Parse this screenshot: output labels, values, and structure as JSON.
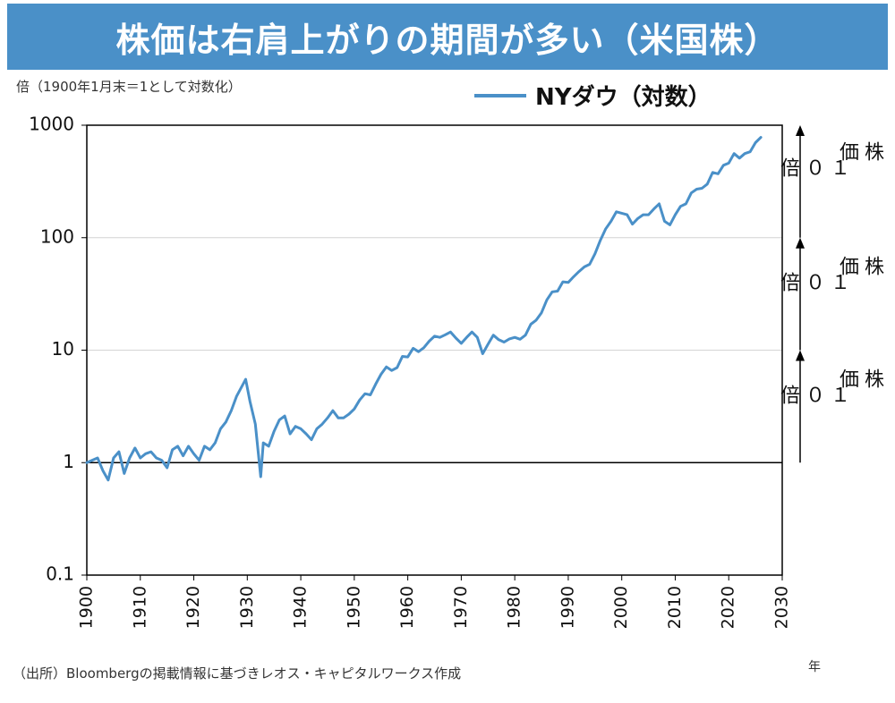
{
  "header": {
    "title": "株価は右肩上がりの期間が多い（米国株）"
  },
  "chart_data": {
    "type": "line",
    "scale_y": "log",
    "ylabel": "倍（1900年1月末＝1として対数化）",
    "xlabel": "年",
    "xlim": [
      1900,
      2030
    ],
    "ylim": [
      0.1,
      1000
    ],
    "x_ticks": [
      "1900",
      "1910",
      "1920",
      "1930",
      "1940",
      "1950",
      "1960",
      "1970",
      "1980",
      "1990",
      "2000",
      "2010",
      "2020",
      "2030"
    ],
    "y_ticks": [
      "0.1",
      "1",
      "10",
      "100",
      "1000"
    ],
    "grid": "horizontal",
    "legend": "top-right",
    "series": [
      {
        "name": "NYダウ（対数）",
        "color": "#4a90c8",
        "x": [
          1900,
          1901,
          1902,
          1903,
          1904,
          1905,
          1906,
          1907,
          1908,
          1909,
          1910,
          1911,
          1912,
          1913,
          1914,
          1915,
          1916,
          1917,
          1918,
          1919,
          1920,
          1921,
          1922,
          1923,
          1924,
          1925,
          1926,
          1927,
          1928,
          1929.7,
          1930.5,
          1931.5,
          1932.5,
          1933,
          1934,
          1935,
          1936,
          1937,
          1938,
          1939,
          1940,
          1941,
          1942,
          1943,
          1944,
          1945,
          1946,
          1947,
          1948,
          1949,
          1950,
          1951,
          1952,
          1953,
          1954,
          1955,
          1956,
          1957,
          1958,
          1959,
          1960,
          1961,
          1962,
          1963,
          1964,
          1965,
          1966,
          1967,
          1968,
          1969,
          1970,
          1971,
          1972,
          1973,
          1974,
          1975,
          1976,
          1977,
          1978,
          1979,
          1980,
          1981,
          1982,
          1983,
          1984,
          1985,
          1986,
          1987,
          1988,
          1989,
          1990,
          1991,
          1992,
          1993,
          1994,
          1995,
          1996,
          1997,
          1998,
          1999,
          2000,
          2001,
          2002,
          2003,
          2004,
          2005,
          2006,
          2007,
          2008,
          2009,
          2010,
          2011,
          2012,
          2013,
          2014,
          2015,
          2016,
          2017,
          2018,
          2019,
          2020,
          2021,
          2022,
          2023,
          2024,
          2025,
          2026
        ],
        "values": [
          1,
          1.05,
          1.1,
          0.85,
          0.7,
          1.1,
          1.25,
          0.8,
          1.1,
          1.35,
          1.1,
          1.2,
          1.25,
          1.1,
          1.05,
          0.9,
          1.3,
          1.4,
          1.15,
          1.4,
          1.2,
          1.05,
          1.4,
          1.3,
          1.5,
          2,
          2.3,
          2.9,
          3.9,
          5.5,
          3.5,
          2.2,
          0.75,
          1.5,
          1.4,
          1.9,
          2.4,
          2.6,
          1.8,
          2.1,
          2,
          1.8,
          1.6,
          2,
          2.2,
          2.5,
          2.9,
          2.5,
          2.5,
          2.7,
          3,
          3.6,
          4.1,
          4,
          5,
          6.1,
          7.1,
          6.6,
          7,
          8.8,
          8.7,
          10.4,
          9.7,
          10.5,
          12,
          13.3,
          13,
          13.7,
          14.5,
          12.8,
          11.5,
          13,
          14.5,
          13,
          9.3,
          11.3,
          13.6,
          12.4,
          11.8,
          12.6,
          13,
          12.5,
          13.6,
          17,
          18.5,
          21.5,
          28,
          33,
          33.5,
          40.5,
          40,
          45,
          50,
          55,
          58,
          72,
          95,
          120,
          140,
          170,
          165,
          160,
          132,
          148,
          160,
          160,
          180,
          200,
          140,
          130,
          160,
          190,
          200,
          250,
          270,
          275,
          300,
          380,
          370,
          440,
          460,
          560,
          510,
          560,
          580,
          700,
          780
        ]
      }
    ],
    "annotations": [
      {
        "num": "１０倍",
        "label": "株価"
      },
      {
        "num": "１０倍",
        "label": "株価"
      },
      {
        "num": "１０倍",
        "label": "株価"
      }
    ]
  },
  "footer": {
    "source": "（出所）Bloombergの掲載情報に基づきレオス・キャピタルワークス作成"
  }
}
